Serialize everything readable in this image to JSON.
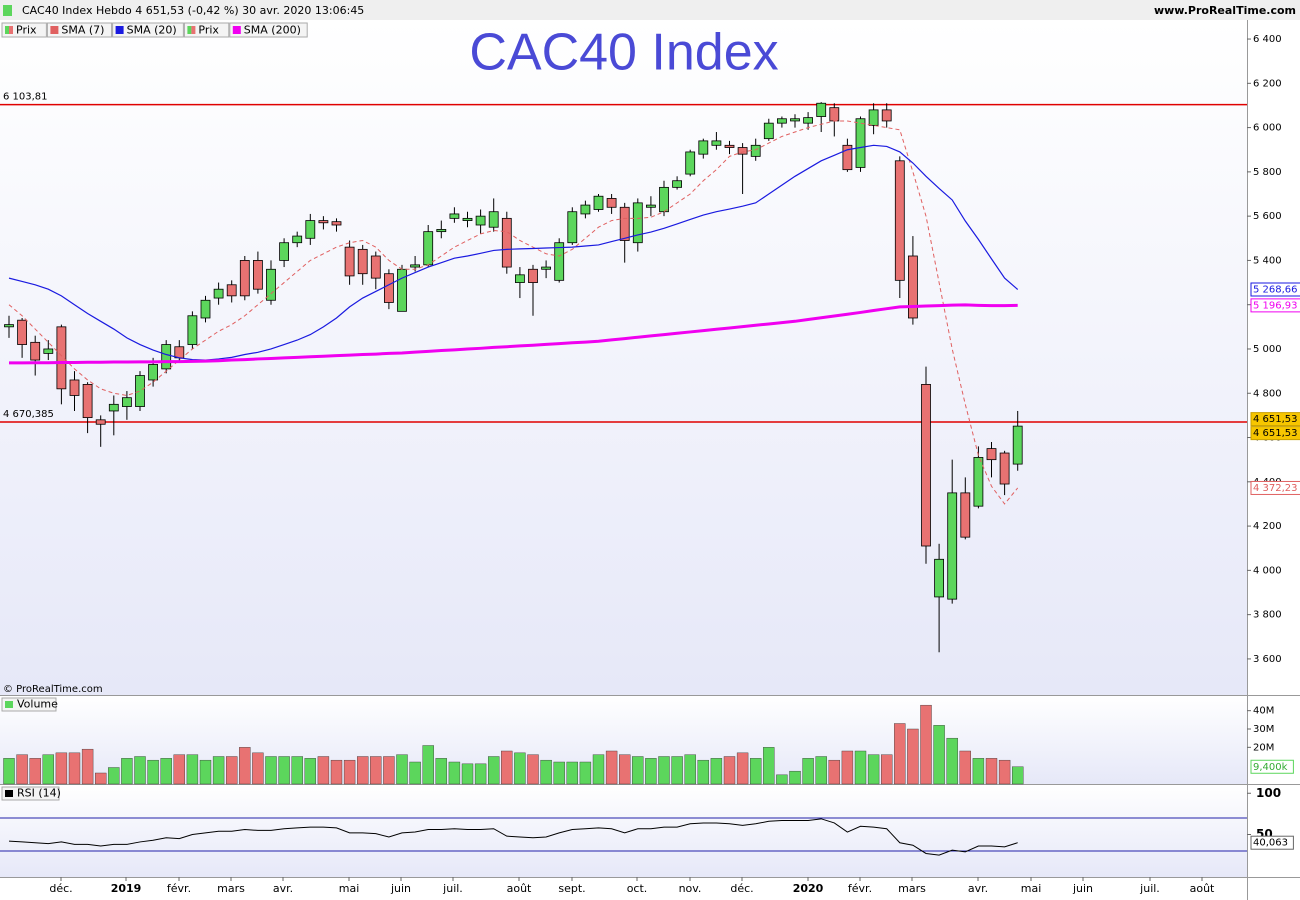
{
  "header": {
    "title": "CAC40 Index Hebdo 4 651,53 (-0,42 %) 30 avr. 2020 13:06:45",
    "site": "www.ProRealTime.com",
    "copyright": "© ProRealTime.com"
  },
  "x_labels": [
    "déc.",
    "2019",
    "févr.",
    "mars",
    "avr.",
    "mai",
    "juin",
    "juil.",
    "août",
    "sept.",
    "oct.",
    "nov.",
    "déc.",
    "2020",
    "févr.",
    "mars",
    "avr.",
    "mai",
    "juin",
    "juil.",
    "août"
  ],
  "chart_data": [
    {
      "type": "candlestick",
      "title": "CAC40 Index",
      "name": "Prix",
      "up_color": "#5cd65c",
      "down_color": "#e87272",
      "last_label": "4 651,53",
      "open": [
        5100,
        5130,
        5030,
        4980,
        5100,
        4860,
        4840,
        4680,
        4720,
        4740,
        4740,
        4860,
        4910,
        5010,
        5020,
        5140,
        5230,
        5290,
        5400,
        5400,
        5220,
        5400,
        5480,
        5500,
        5580,
        5575,
        5460,
        5450,
        5420,
        5340,
        5170,
        5370,
        5380,
        5530,
        5590,
        5580,
        5560,
        5550,
        5590,
        5300,
        5360,
        5360,
        5310,
        5480,
        5610,
        5630,
        5680,
        5640,
        5480,
        5640,
        5620,
        5730,
        5790,
        5880,
        5920,
        5920,
        5910,
        5870,
        5950,
        6020,
        6030,
        6020,
        6050,
        6090,
        5920,
        5820,
        6010,
        6080,
        5850,
        5420,
        4840,
        3880,
        3870,
        4350,
        4290,
        4550,
        4530,
        4480
      ],
      "high": [
        5150,
        5140,
        5060,
        5040,
        5110,
        4900,
        4850,
        4700,
        4790,
        4810,
        4900,
        4960,
        5040,
        5040,
        5170,
        5240,
        5300,
        5310,
        5420,
        5440,
        5400,
        5500,
        5530,
        5610,
        5600,
        5590,
        5490,
        5470,
        5440,
        5360,
        5380,
        5420,
        5560,
        5580,
        5640,
        5620,
        5630,
        5680,
        5620,
        5370,
        5380,
        5400,
        5500,
        5640,
        5670,
        5700,
        5700,
        5660,
        5680,
        5690,
        5760,
        5780,
        5900,
        5950,
        5980,
        5940,
        5930,
        5950,
        6040,
        6050,
        6060,
        6070,
        6115,
        6110,
        5950,
        6050,
        6110,
        6110,
        5870,
        5510,
        4920,
        4120,
        4500,
        4420,
        4560,
        4580,
        4540,
        4720
      ],
      "low": [
        5050,
        4960,
        4880,
        4950,
        4750,
        4720,
        4620,
        4558,
        4610,
        4680,
        4720,
        4830,
        4890,
        4940,
        5000,
        5120,
        5200,
        5210,
        5220,
        5250,
        5200,
        5370,
        5460,
        5470,
        5540,
        5530,
        5290,
        5290,
        5270,
        5180,
        5170,
        5350,
        5370,
        5500,
        5570,
        5550,
        5520,
        5530,
        5340,
        5230,
        5150,
        5320,
        5300,
        5470,
        5590,
        5620,
        5610,
        5390,
        5440,
        5600,
        5600,
        5720,
        5780,
        5860,
        5900,
        5880,
        5700,
        5850,
        5940,
        6000,
        6000,
        5990,
        5980,
        5960,
        5800,
        5800,
        5970,
        6000,
        5230,
        5110,
        4030,
        3630,
        3850,
        4140,
        4280,
        4420,
        4340,
        4450
      ],
      "close": [
        5110,
        5020,
        4950,
        5000,
        4820,
        4790,
        4690,
        4660,
        4750,
        4780,
        4880,
        4930,
        5020,
        4960,
        5150,
        5220,
        5270,
        5240,
        5240,
        5270,
        5360,
        5480,
        5510,
        5580,
        5570,
        5560,
        5330,
        5340,
        5320,
        5210,
        5360,
        5380,
        5530,
        5540,
        5610,
        5590,
        5600,
        5620,
        5370,
        5335,
        5300,
        5370,
        5480,
        5620,
        5650,
        5690,
        5640,
        5490,
        5660,
        5650,
        5730,
        5760,
        5890,
        5940,
        5940,
        5910,
        5880,
        5920,
        6020,
        6040,
        6040,
        6045,
        6110,
        6030,
        5810,
        6040,
        6080,
        6030,
        5310,
        5140,
        4110,
        4050,
        4350,
        4150,
        4510,
        4500,
        4390,
        4651.53
      ],
      "series": [
        {
          "name": "SMA (7)",
          "color": "#e06060",
          "last_label": "4 372,23",
          "values": [
            5200,
            5150,
            5090,
            5030,
            4970,
            4910,
            4860,
            4820,
            4800,
            4790,
            4810,
            4850,
            4900,
            4950,
            5000,
            5040,
            5080,
            5110,
            5150,
            5200,
            5250,
            5300,
            5350,
            5400,
            5430,
            5460,
            5480,
            5490,
            5460,
            5400,
            5360,
            5360,
            5380,
            5420,
            5460,
            5490,
            5520,
            5535,
            5530,
            5490,
            5460,
            5430,
            5420,
            5450,
            5500,
            5550,
            5580,
            5590,
            5590,
            5595,
            5620,
            5660,
            5700,
            5760,
            5810,
            5870,
            5890,
            5900,
            5930,
            5960,
            5980,
            6000,
            6015,
            6030,
            6030,
            6020,
            6010,
            6000,
            5990,
            5800,
            5600,
            5300,
            5000,
            4750,
            4520,
            4380,
            4300,
            4372.23
          ]
        },
        {
          "name": "SMA (20)",
          "color": "#1a1ae0",
          "last_label": "5 268,66",
          "values": [
            5320,
            5305,
            5290,
            5270,
            5240,
            5200,
            5160,
            5125,
            5090,
            5050,
            5020,
            4995,
            4975,
            4960,
            4952,
            4950,
            4955,
            4962,
            4975,
            4985,
            5000,
            5020,
            5040,
            5065,
            5100,
            5140,
            5190,
            5230,
            5260,
            5290,
            5320,
            5345,
            5370,
            5390,
            5410,
            5420,
            5432,
            5445,
            5450,
            5452,
            5454,
            5456,
            5458,
            5460,
            5465,
            5470,
            5485,
            5500,
            5515,
            5528,
            5545,
            5565,
            5585,
            5605,
            5620,
            5632,
            5645,
            5660,
            5700,
            5740,
            5780,
            5815,
            5850,
            5875,
            5900,
            5910,
            5920,
            5915,
            5890,
            5840,
            5780,
            5725,
            5673,
            5578,
            5495,
            5407,
            5320,
            5268.66
          ]
        },
        {
          "name": "SMA (200)",
          "color": "#f000f0",
          "last_label": "5 196,93",
          "values": [
            4937,
            4937,
            4938,
            4938,
            4939,
            4939,
            4940,
            4940,
            4941,
            4941,
            4942,
            4942,
            4943,
            4943,
            4944,
            4945,
            4947,
            4950,
            4952,
            4955,
            4957,
            4960,
            4962,
            4965,
            4967,
            4970,
            4972,
            4975,
            4977,
            4980,
            4982,
            4986,
            4989,
            4993,
            4996,
            5000,
            5003,
            5007,
            5010,
            5014,
            5017,
            5021,
            5024,
            5028,
            5031,
            5035,
            5041,
            5047,
            5053,
            5059,
            5065,
            5071,
            5077,
            5083,
            5089,
            5095,
            5101,
            5107,
            5113,
            5119,
            5125,
            5133,
            5141,
            5149,
            5157,
            5165,
            5174,
            5182,
            5190,
            5192,
            5194,
            5196,
            5198,
            5199,
            5197,
            5196,
            5196,
            5196.93
          ]
        }
      ],
      "hlines": [
        {
          "value": 6103.81,
          "label": "6 103,81",
          "color": "#e00000"
        },
        {
          "value": 4670.385,
          "label": "4 670,385",
          "color": "#e00000"
        }
      ],
      "ylim": [
        3437,
        6486
      ],
      "yticks": [
        {
          "value": 6400,
          "label": "6 400"
        },
        {
          "value": 6200,
          "label": "6 200"
        },
        {
          "value": 6000,
          "label": "6 000"
        },
        {
          "value": 5800,
          "label": "5 800"
        },
        {
          "value": 5600,
          "label": "5 600"
        },
        {
          "value": 5400,
          "label": "5 400"
        },
        {
          "value": 5200,
          "label": "5 200"
        },
        {
          "value": 5000,
          "label": "5 000"
        },
        {
          "value": 4800,
          "label": "4 800"
        },
        {
          "value": 4600,
          "label": "4 600"
        },
        {
          "value": 4400,
          "label": "4 400"
        },
        {
          "value": 4200,
          "label": "4 200"
        },
        {
          "value": 4000,
          "label": "4 000"
        },
        {
          "value": 3800,
          "label": "3 800"
        },
        {
          "value": 3600,
          "label": "3 600"
        }
      ]
    },
    {
      "type": "bar",
      "title": "Volume",
      "last_label": "9,400k",
      "values": [
        14,
        16,
        14,
        16,
        17,
        17,
        19,
        6,
        9,
        14,
        15,
        13,
        14,
        16,
        16,
        13,
        15,
        15,
        20,
        17,
        15,
        15,
        15,
        14,
        15,
        13,
        13,
        15,
        15,
        15,
        16,
        12,
        21,
        14,
        12,
        11,
        11,
        15,
        18,
        17,
        16,
        13,
        12,
        12,
        12,
        16,
        18,
        16,
        15,
        14,
        15,
        15,
        16,
        13,
        14,
        15,
        17,
        14,
        20,
        5,
        7,
        14,
        15,
        13,
        18,
        18,
        16,
        16,
        33,
        30,
        43,
        32,
        25,
        18,
        14,
        14,
        13,
        9.4
      ],
      "ylim": [
        0,
        48
      ],
      "yticks": [
        {
          "value": 40,
          "label": "40M"
        },
        {
          "value": 30,
          "label": "30M"
        },
        {
          "value": 20,
          "label": "20M"
        }
      ]
    },
    {
      "type": "line",
      "title": "RSI (14)",
      "color": "#000000",
      "last_label": "40,063",
      "values": [
        42,
        41,
        40,
        39,
        41,
        38,
        38,
        36,
        38,
        38,
        41,
        43,
        46,
        45,
        50,
        52,
        54,
        54,
        56,
        55,
        55,
        57,
        58,
        59,
        59,
        58,
        52,
        52,
        51,
        47,
        52,
        53,
        56,
        56,
        57,
        56,
        56,
        57,
        48,
        47,
        46,
        47,
        52,
        56,
        57,
        58,
        57,
        52,
        57,
        57,
        59,
        59,
        63,
        64,
        64,
        63,
        61,
        63,
        66,
        67,
        67,
        67,
        69,
        64,
        53,
        60,
        59,
        57,
        40,
        37,
        27,
        25,
        31,
        29,
        36,
        36,
        35,
        40.063
      ],
      "ylim": [
        -1.5,
        110
      ],
      "yticks": [
        100,
        50
      ],
      "levels": [
        70,
        30
      ]
    }
  ]
}
